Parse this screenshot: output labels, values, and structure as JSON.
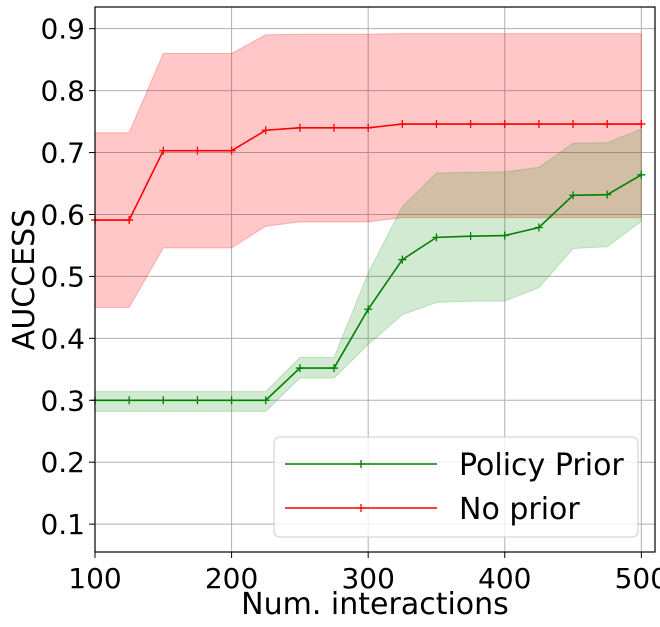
{
  "chart_data": {
    "type": "line",
    "xlabel": "Num. interactions",
    "ylabel": "AUCCESS",
    "xlim": [
      100,
      510
    ],
    "ylim": [
      0.055,
      0.935
    ],
    "xticks": [
      "100",
      "200",
      "300",
      "400",
      "500"
    ],
    "yticks": [
      "0.1",
      "0.2",
      "0.3",
      "0.4",
      "0.5",
      "0.6",
      "0.7",
      "0.8",
      "0.9"
    ],
    "grid": true,
    "legend_position": "lower-right",
    "x": [
      100,
      125,
      150,
      175,
      200,
      225,
      250,
      275,
      300,
      325,
      350,
      375,
      400,
      425,
      450,
      475,
      500
    ],
    "series": [
      {
        "name": "Policy Prior",
        "color": "#008000",
        "band_color": "#2ca02c",
        "values": [
          0.3,
          0.3,
          0.3,
          0.3,
          0.3,
          0.3,
          0.352,
          0.352,
          0.447,
          0.527,
          0.563,
          0.565,
          0.566,
          0.579,
          0.631,
          0.632,
          0.664
        ],
        "lower": [
          0.282,
          0.282,
          0.282,
          0.282,
          0.282,
          0.282,
          0.336,
          0.336,
          0.39,
          0.438,
          0.458,
          0.46,
          0.46,
          0.482,
          0.545,
          0.548,
          0.589
        ],
        "upper": [
          0.314,
          0.314,
          0.314,
          0.314,
          0.314,
          0.314,
          0.369,
          0.369,
          0.505,
          0.613,
          0.667,
          0.668,
          0.669,
          0.676,
          0.715,
          0.716,
          0.738
        ]
      },
      {
        "name": "No prior",
        "color": "#ff0000",
        "band_color": "#ff0000",
        "values": [
          0.591,
          0.591,
          0.703,
          0.703,
          0.703,
          0.736,
          0.74,
          0.74,
          0.74,
          0.746,
          0.746,
          0.746,
          0.746,
          0.746,
          0.746,
          0.746,
          0.746
        ],
        "lower": [
          0.45,
          0.45,
          0.546,
          0.546,
          0.546,
          0.581,
          0.588,
          0.588,
          0.588,
          0.595,
          0.595,
          0.595,
          0.595,
          0.595,
          0.595,
          0.595,
          0.595
        ],
        "upper": [
          0.732,
          0.732,
          0.86,
          0.86,
          0.86,
          0.89,
          0.891,
          0.891,
          0.891,
          0.892,
          0.892,
          0.892,
          0.892,
          0.892,
          0.892,
          0.892,
          0.892
        ]
      }
    ]
  }
}
